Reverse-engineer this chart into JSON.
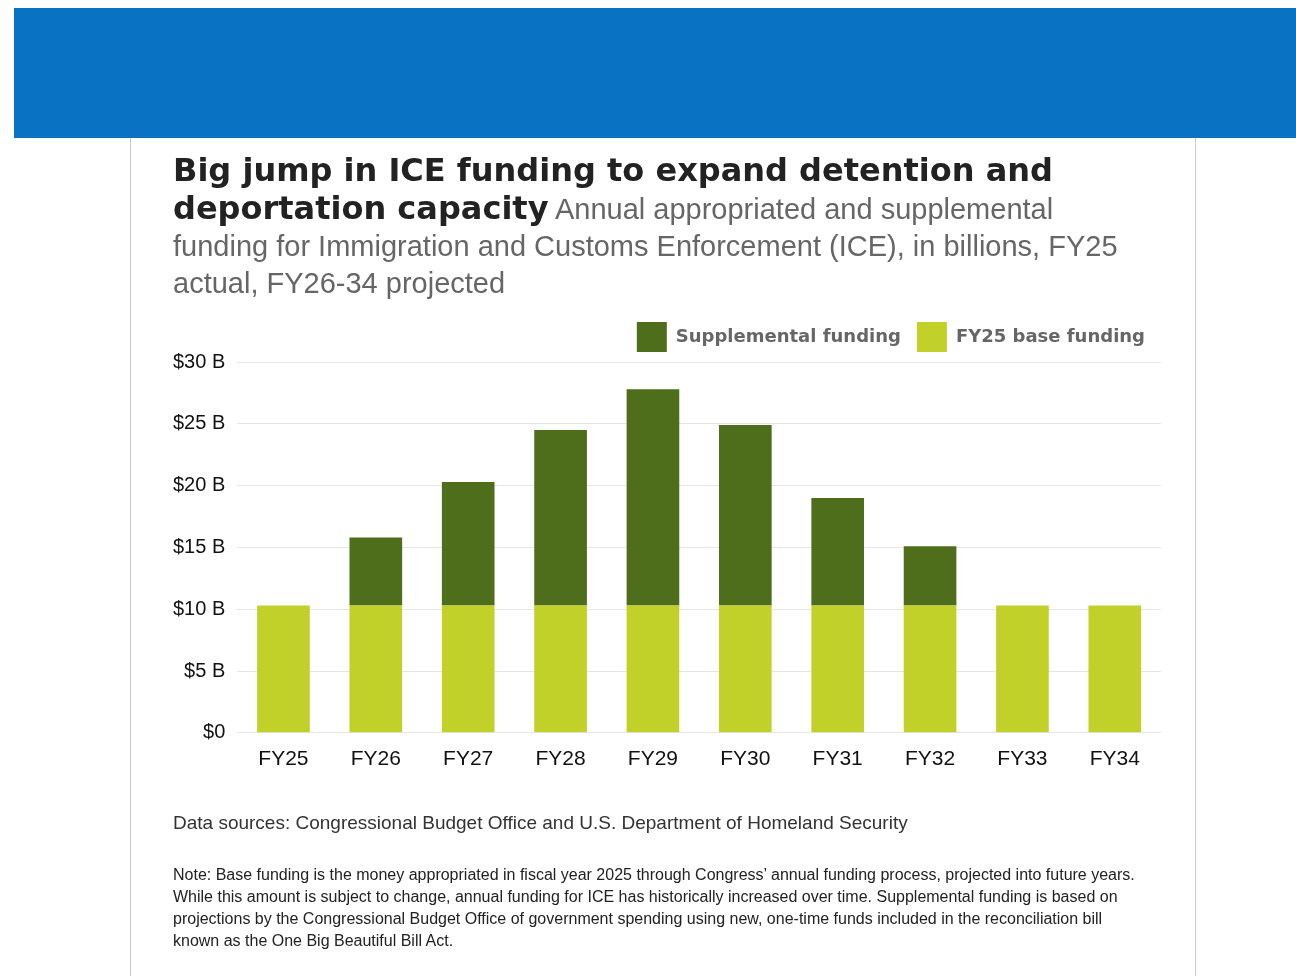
{
  "chart_data": {
    "type": "bar",
    "title": "Big jump in ICE funding to expand detention and deportation capacity",
    "subtitle": "Annual appropriated and supplemental funding for Immigration and Customs Enforcement (ICE), in billions, FY25 actual, FY26-34 projected",
    "categories": [
      "FY25",
      "FY26",
      "FY27",
      "FY28",
      "FY29",
      "FY30",
      "FY31",
      "FY32",
      "FY33",
      "FY34"
    ],
    "series": [
      {
        "name": "FY25 base funding",
        "color": "#c2d12a",
        "values": [
          10.3,
          10.3,
          10.3,
          10.3,
          10.3,
          10.3,
          10.3,
          10.3,
          10.3,
          10.3
        ]
      },
      {
        "name": "Supplemental funding",
        "color": "#4e6e1b",
        "values": [
          null,
          5.5,
          10.0,
          14.2,
          17.5,
          14.6,
          8.7,
          4.8,
          null,
          null
        ]
      }
    ],
    "stacked": true,
    "ylim": [
      0,
      30
    ],
    "yticks": [
      {
        "value": 0,
        "label": "$0"
      },
      {
        "value": 5,
        "label": "$5 B"
      },
      {
        "value": 10,
        "label": "$10 B"
      },
      {
        "value": 15,
        "label": "$15 B"
      },
      {
        "value": 20,
        "label": "$20 B"
      },
      {
        "value": 25,
        "label": "$25 B"
      },
      {
        "value": 30,
        "label": "$30 B"
      }
    ],
    "grid": "y",
    "legend": "top right",
    "annotations": [
      "Data sources: Congressional Budget Office and U.S. Department of Homeland Security",
      "Note: Base funding is the money appropriated in fiscal year 2025 through Congress’ annual funding process, projected into future years. While this amount is subject to change, annual funding for ICE has historically increased over time. Supplemental funding is based on projections by the Congressional Budget Office of government spending using new, one-time funds included in the reconciliation bill known as the One Big Beautiful Bill Act."
    ]
  }
}
